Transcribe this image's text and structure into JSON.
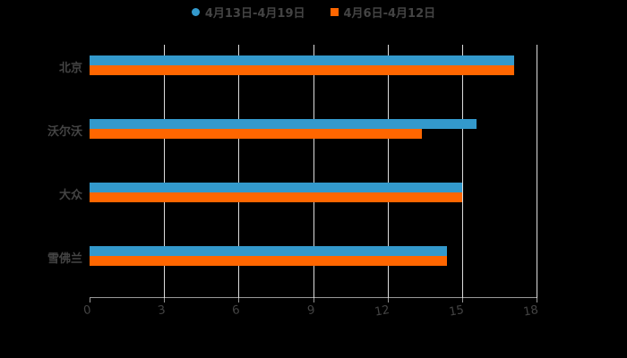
{
  "chart_data": {
    "type": "bar",
    "orientation": "horizontal",
    "title": "",
    "categories": [
      "北京",
      "沃尔沃",
      "大众",
      "雪佛兰"
    ],
    "series": [
      {
        "name": "4月13日-4月19日",
        "color": "#3399cc",
        "values": [
          17.1,
          15.6,
          15.0,
          14.4
        ]
      },
      {
        "name": "4月6日-4月12日",
        "color": "#ff6600",
        "values": [
          17.1,
          13.4,
          15.0,
          14.4
        ]
      }
    ],
    "xlabel": "",
    "ylabel": "",
    "xlim": [
      0,
      18
    ],
    "xticks": [
      "0",
      "3",
      "6",
      "9",
      "12",
      "15",
      "18"
    ],
    "grid": true,
    "legend_position": "top"
  },
  "legend": {
    "items": [
      {
        "label": "4月13日-4月19日",
        "color": "#3399cc",
        "shape": "circle"
      },
      {
        "label": "4月6日-4月12日",
        "color": "#ff6600",
        "shape": "square"
      }
    ]
  }
}
